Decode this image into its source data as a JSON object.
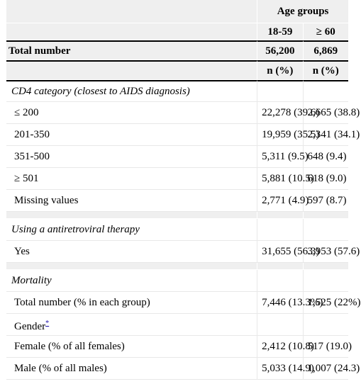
{
  "header": {
    "group_label": "Age groups",
    "col1": "18-59",
    "col2": "≥ 60"
  },
  "total": {
    "label": "Total number",
    "col1": "56,200",
    "col2": "6,869"
  },
  "units": {
    "col1": "n (%)",
    "col2": "n (%)"
  },
  "cd4": {
    "title": "CD4 category (closest to AIDS diagnosis)",
    "rows": [
      {
        "label": "≤ 200",
        "col1": "22,278 (39.6)",
        "col2": "2,665 (38.8)"
      },
      {
        "label": "201-350",
        "col1": "19,959 (35.5)",
        "col2": "2,341 (34.1)"
      },
      {
        "label": "351-500",
        "col1": "5,311 (9.5)",
        "col2": "648 (9.4)"
      },
      {
        "label": "≥ 501",
        "col1": "5,881 (10.5)",
        "col2": "618 (9.0)"
      },
      {
        "label": "Missing values",
        "col1": "2,771 (4.9)",
        "col2": "597 (8.7)"
      }
    ]
  },
  "art": {
    "title": "Using a antiretroviral therapy",
    "rows": [
      {
        "label": "Yes",
        "col1": "31,655 (56.3)",
        "col2": "3,953 (57.6)"
      }
    ]
  },
  "mortality": {
    "title": "Mortality",
    "total": {
      "label": "Total number (% in each group)",
      "col1": "7,446 (13.3%)",
      "col2": "1,525 (22%)"
    },
    "gender": {
      "label": "Gender",
      "footnote": "*"
    },
    "female": {
      "label": "Female (% of all females)",
      "col1": "2,412 (10.8)",
      "col2": "517 (19.0)"
    },
    "male": {
      "label": "Male (% of all males)",
      "col1": "5,033 (14.9)",
      "col2": "1,007 (24.3)"
    }
  }
}
